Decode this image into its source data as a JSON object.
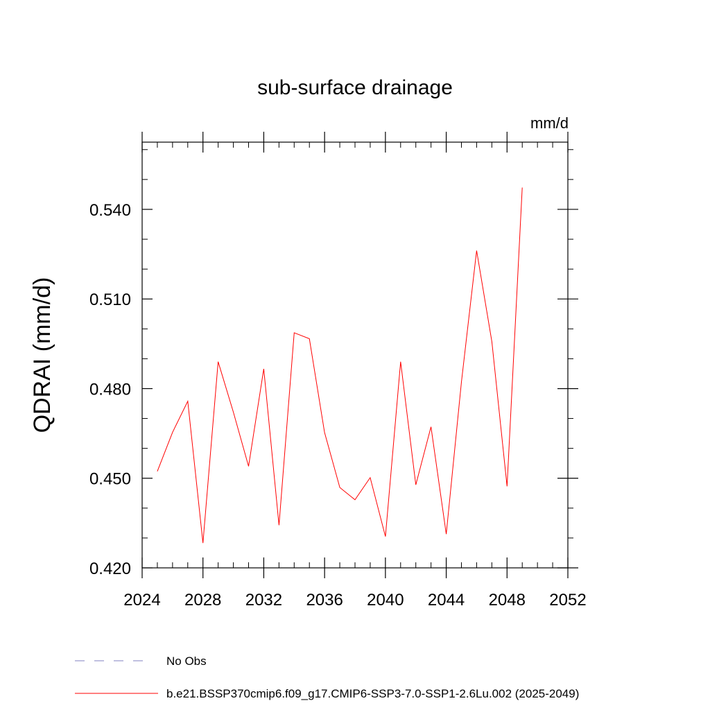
{
  "chart_data": {
    "type": "line",
    "title": "sub-surface drainage",
    "units_label": "mm/d",
    "ylabel": "QDRAI  (mm/d)",
    "xlabel": "",
    "xlim": [
      2024,
      2052
    ],
    "ylim": [
      0.42,
      0.5625
    ],
    "x_ticks": [
      2024,
      2028,
      2032,
      2036,
      2040,
      2044,
      2048,
      2052
    ],
    "x_tick_labels": [
      "2024",
      "2028",
      "2032",
      "2036",
      "2040",
      "2044",
      "2048",
      "2052"
    ],
    "x_minor_step": 1,
    "y_ticks": [
      0.42,
      0.45,
      0.48,
      0.51,
      0.54
    ],
    "y_tick_labels": [
      "0.420",
      "0.450",
      "0.480",
      "0.510",
      "0.540"
    ],
    "y_minor_step": 0.01,
    "grid": false,
    "legend_position": "bottom",
    "series": [
      {
        "name": "b.e21.BSSP370cmip6.f09_g17.CMIP6-SSP3-7.0-SSP1-2.6Lu.002 (2025-2049)",
        "color": "#ff0000",
        "style": "solid",
        "x": [
          2025,
          2026,
          2027,
          2028,
          2029,
          2030,
          2031,
          2032,
          2033,
          2034,
          2035,
          2036,
          2037,
          2038,
          2039,
          2040,
          2041,
          2042,
          2043,
          2044,
          2045,
          2046,
          2047,
          2048,
          2049
        ],
        "y": [
          0.4523,
          0.4654,
          0.4758,
          0.4283,
          0.489,
          0.4721,
          0.454,
          0.4866,
          0.4343,
          0.4987,
          0.4967,
          0.4653,
          0.4469,
          0.4428,
          0.4502,
          0.4305,
          0.489,
          0.4478,
          0.4672,
          0.4313,
          0.4822,
          0.5262,
          0.4957,
          0.4473,
          0.5473
        ]
      }
    ],
    "legend": [
      {
        "label": "No Obs",
        "color": "#8080c0",
        "style": "dashed"
      },
      {
        "label": "b.e21.BSSP370cmip6.f09_g17.CMIP6-SSP3-7.0-SSP1-2.6Lu.002 (2025-2049)",
        "color": "#ff0000",
        "style": "solid"
      }
    ]
  }
}
